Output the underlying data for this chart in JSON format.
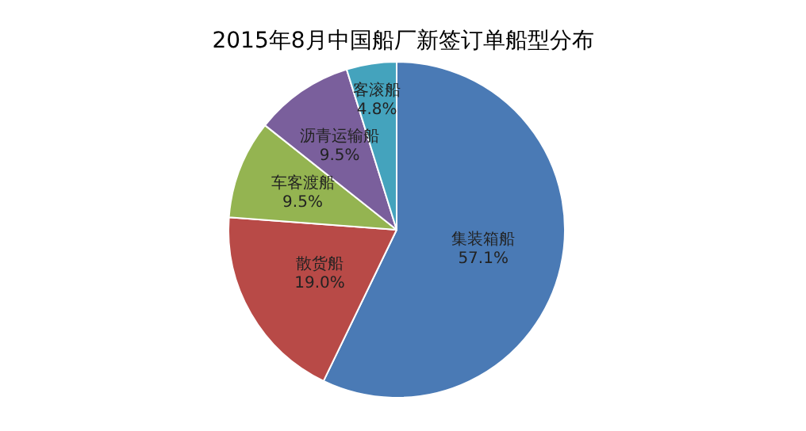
{
  "chart_data": {
    "type": "pie",
    "title": "2015年8月中国船厂新签订单船型分布",
    "categories": [
      "集装箱船",
      "散货船",
      "车客渡船",
      "沥青运输船",
      "客滚船"
    ],
    "values": [
      57.1,
      19.0,
      9.5,
      9.5,
      4.8
    ],
    "value_labels": [
      "57.1%",
      "19.0%",
      "9.5%",
      "9.5%",
      "4.8%"
    ],
    "colors": [
      "#4a7ab5",
      "#b84a47",
      "#94b451",
      "#7a5f9c",
      "#44a3bd"
    ],
    "legend": false
  }
}
